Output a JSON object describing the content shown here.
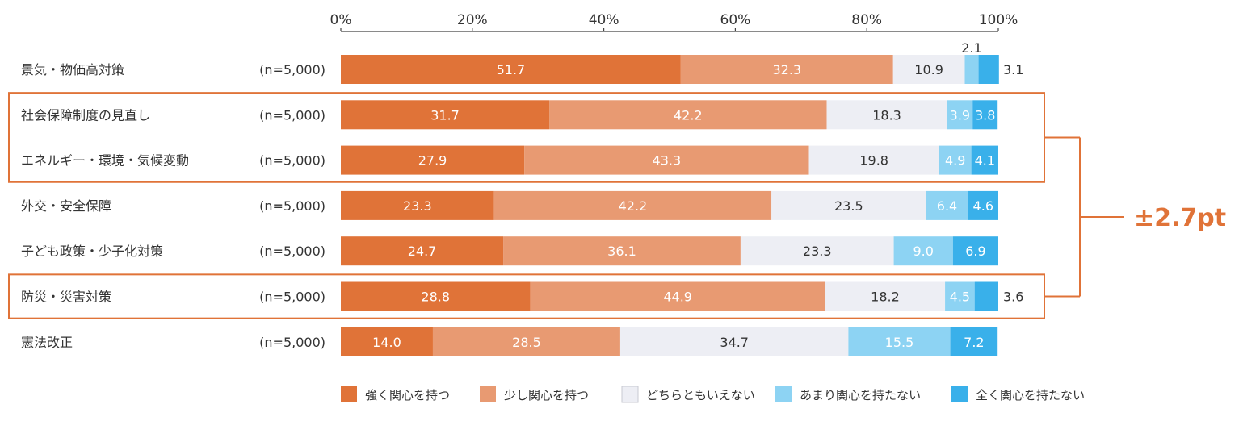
{
  "chart_data": {
    "type": "bar",
    "orientation": "horizontal",
    "stacked": true,
    "percent_scale": true,
    "xlim": [
      0,
      100
    ],
    "x_ticks": [
      "0%",
      "20%",
      "40%",
      "60%",
      "80%",
      "100%"
    ],
    "grid": false,
    "legend_position": "bottom",
    "categories": [
      "景気・物価高対策",
      "社会保障制度の見直し",
      "エネルギー・環境・気候変動",
      "外交・安全保障",
      "子ども政策・少子化対策",
      "防災・災害対策",
      "憲法改正"
    ],
    "n_labels": [
      "(n=5,000)",
      "(n=5,000)",
      "(n=5,000)",
      "(n=5,000)",
      "(n=5,000)",
      "(n=5,000)",
      "(n=5,000)"
    ],
    "series": [
      {
        "name": "強く関心を持つ",
        "color": "#E07338",
        "values": [
          51.7,
          31.7,
          27.9,
          23.3,
          24.7,
          28.8,
          14.0
        ]
      },
      {
        "name": "少し関心を持つ",
        "color": "#E89A72",
        "values": [
          32.3,
          42.2,
          43.3,
          42.2,
          36.1,
          44.9,
          28.5
        ]
      },
      {
        "name": "どちらともいえない",
        "color": "#EDEEF4",
        "values": [
          10.9,
          18.3,
          19.8,
          23.5,
          23.3,
          18.2,
          34.7
        ]
      },
      {
        "name": "あまり関心を持たない",
        "color": "#8DD3F3",
        "values": [
          2.1,
          3.9,
          4.9,
          6.4,
          9.0,
          4.5,
          15.5
        ]
      },
      {
        "name": "全く関心を持たない",
        "color": "#39B0EA",
        "values": [
          3.1,
          3.8,
          4.1,
          4.6,
          6.9,
          3.6,
          7.2
        ]
      }
    ],
    "value_labels": [
      [
        "51.7",
        "32.3",
        "10.9",
        "2.1",
        "3.1"
      ],
      [
        "31.7",
        "42.2",
        "18.3",
        "3.9",
        "3.8"
      ],
      [
        "27.9",
        "43.3",
        "19.8",
        "4.9",
        "4.1"
      ],
      [
        "23.3",
        "42.2",
        "23.5",
        "6.4",
        "4.6"
      ],
      [
        "24.7",
        "36.1",
        "23.3",
        "9.0",
        "6.9"
      ],
      [
        "28.8",
        "44.9",
        "18.2",
        "4.5",
        "3.6"
      ],
      [
        "14.0",
        "28.5",
        "34.7",
        "15.5",
        "7.2"
      ]
    ],
    "highlighted_rows": [
      1,
      2,
      5
    ],
    "annotation": {
      "text": "±2.7pt",
      "color": "#E07338"
    }
  }
}
